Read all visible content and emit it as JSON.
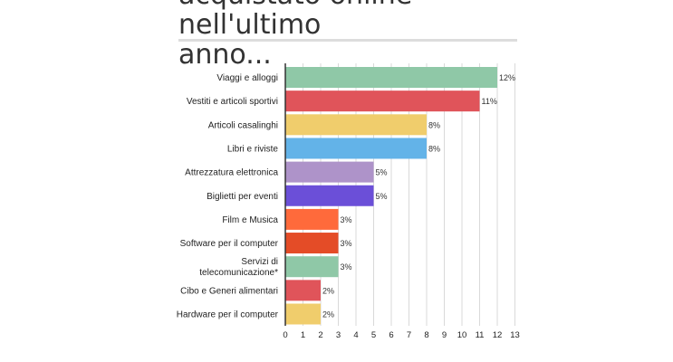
{
  "title": "acquistato online nell'ultimo\nanno...",
  "chart_data": {
    "type": "bar",
    "orientation": "horizontal",
    "title": "acquistato online nell'ultimo anno...",
    "xlabel": "",
    "ylabel": "",
    "xlim": [
      0,
      13
    ],
    "ticks": [
      0,
      1,
      2,
      3,
      4,
      5,
      6,
      7,
      8,
      9,
      10,
      11,
      12,
      13
    ],
    "grid": true,
    "categories": [
      "Viaggi e alloggi",
      "Vestiti e articoli sportivi",
      "Articoli casalinghi",
      "Libri e riviste",
      "Attrezzatura elettronica",
      "Biglietti per eventi",
      "Film e Musica",
      "Software per il computer",
      "Servizi di\ntelecomunicazione*",
      "Cibo e Generi alimentari",
      "Hardware per il computer"
    ],
    "values": [
      12,
      11,
      8,
      8,
      5,
      5,
      3,
      3,
      3,
      2,
      2
    ],
    "value_labels": [
      "12%",
      "11%",
      "8%",
      "8%",
      "5%",
      "5%",
      "3%",
      "3%",
      "3%",
      "2%",
      "2%"
    ],
    "colors": [
      "#8fc8a7",
      "#e0545a",
      "#f0cd6c",
      "#63b3e8",
      "#ae93c9",
      "#6b4fd8",
      "#ff6a3b",
      "#e44c27",
      "#8fc8a7",
      "#e0545a",
      "#f0cd6c"
    ]
  }
}
